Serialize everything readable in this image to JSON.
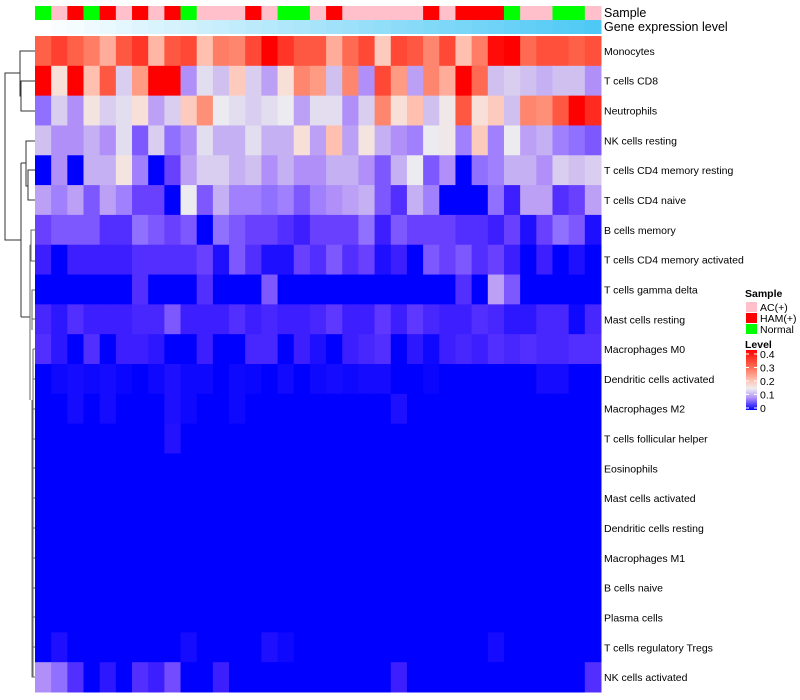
{
  "chart_data": {
    "type": "heatmap",
    "annotation_labels": {
      "sample": "Sample",
      "gene_expression": "Gene expression level"
    },
    "sample_colors": {
      "AC(+)": "#ffc0cb",
      "HAM(+)": "#ff0000",
      "Normal": "#00ff00"
    },
    "samples": [
      "Normal",
      "AC(+)",
      "HAM(+)",
      "Normal",
      "HAM(+)",
      "AC(+)",
      "HAM(+)",
      "AC(+)",
      "HAM(+)",
      "Normal",
      "AC(+)",
      "AC(+)",
      "AC(+)",
      "HAM(+)",
      "AC(+)",
      "Normal",
      "Normal",
      "AC(+)",
      "HAM(+)",
      "AC(+)",
      "AC(+)",
      "AC(+)",
      "AC(+)",
      "AC(+)",
      "HAM(+)",
      "AC(+)",
      "HAM(+)",
      "HAM(+)",
      "HAM(+)",
      "Normal",
      "AC(+)",
      "AC(+)",
      "Normal",
      "Normal",
      "AC(+)"
    ],
    "gene_expression": [
      0,
      0.03,
      0.06,
      0.09,
      0.12,
      0.15,
      0.18,
      0.21,
      0.24,
      0.26,
      0.29,
      0.32,
      0.35,
      0.38,
      0.41,
      0.44,
      0.47,
      0.5,
      0.53,
      0.56,
      0.59,
      0.62,
      0.65,
      0.68,
      0.71,
      0.74,
      0.76,
      0.79,
      0.82,
      0.85,
      0.88,
      0.91,
      0.94,
      0.97,
      1.0
    ],
    "gene_expression_colors": [
      "#ffffff",
      "#4ec9f5"
    ],
    "rows": [
      {
        "name": "Monocytes",
        "values": [
          0.3,
          0.34,
          0.3,
          0.27,
          0.22,
          0.31,
          0.35,
          0.21,
          0.31,
          0.33,
          0.2,
          0.27,
          0.26,
          0.33,
          0.4,
          0.35,
          0.31,
          0.31,
          0.22,
          0.29,
          0.33,
          0.19,
          0.33,
          0.31,
          0.26,
          0.33,
          0.2,
          0.27,
          0.39,
          0.4,
          0.29,
          0.32,
          0.32,
          0.3,
          0.32
        ]
      },
      {
        "name": "T cells CD8",
        "values": [
          0.4,
          0.17,
          0.4,
          0.2,
          0.31,
          0.12,
          0.24,
          0.4,
          0.4,
          0.08,
          0.13,
          0.11,
          0.19,
          0.12,
          0.09,
          0.17,
          0.26,
          0.24,
          0.11,
          0.26,
          0.08,
          0.33,
          0.24,
          0.09,
          0.26,
          0.22,
          0.4,
          0.29,
          0.11,
          0.12,
          0.11,
          0.1,
          0.11,
          0.11,
          0.08
        ]
      },
      {
        "name": "Neutrophils",
        "values": [
          0.06,
          0.12,
          0.08,
          0.16,
          0.12,
          0.13,
          0.17,
          0.09,
          0.12,
          0.19,
          0.25,
          0.14,
          0.13,
          0.12,
          0.13,
          0.14,
          0.09,
          0.13,
          0.13,
          0.08,
          0.12,
          0.26,
          0.17,
          0.2,
          0.11,
          0.15,
          0.31,
          0.17,
          0.19,
          0.11,
          0.26,
          0.25,
          0.31,
          0.4,
          0.36
        ]
      },
      {
        "name": "NK cells resting",
        "values": [
          0.11,
          0.08,
          0.08,
          0.1,
          0.08,
          0.13,
          0.05,
          0.12,
          0.06,
          0.08,
          0.13,
          0.1,
          0.1,
          0.13,
          0.1,
          0.1,
          0.17,
          0.09,
          0.2,
          0.09,
          0.16,
          0.1,
          0.08,
          0.07,
          0.14,
          0.15,
          0.07,
          0.19,
          0.07,
          0.14,
          0.09,
          0.1,
          0.07,
          0.06,
          0.05
        ]
      },
      {
        "name": "T cells CD4 memory resting",
        "values": [
          0,
          0.08,
          0,
          0.1,
          0.1,
          0.16,
          0.07,
          0,
          0.04,
          0.09,
          0.12,
          0.12,
          0.1,
          0.11,
          0.08,
          0.1,
          0.08,
          0.08,
          0.1,
          0.1,
          0.08,
          0.05,
          0.1,
          0.14,
          0.05,
          0.08,
          0,
          0.06,
          0.07,
          0.1,
          0.1,
          0.08,
          0.12,
          0.11,
          0.12
        ]
      },
      {
        "name": "T cells CD4 naive",
        "values": [
          0.09,
          0.07,
          0.09,
          0.05,
          0.09,
          0.07,
          0.04,
          0.04,
          0,
          0.14,
          0.05,
          0.1,
          0.07,
          0.07,
          0.06,
          0.07,
          0.05,
          0.07,
          0.08,
          0.09,
          0.1,
          0.05,
          0.03,
          0.1,
          0.07,
          0,
          0,
          0,
          0.06,
          0.02,
          0.09,
          0.09,
          0.03,
          0.04,
          0.09
        ]
      },
      {
        "name": "B cells memory",
        "values": [
          0.04,
          0.05,
          0.05,
          0.05,
          0.03,
          0.03,
          0.06,
          0.05,
          0.04,
          0.05,
          0,
          0.06,
          0.05,
          0.04,
          0.04,
          0.03,
          0.02,
          0.04,
          0.04,
          0.04,
          0.06,
          0.02,
          0.05,
          0.04,
          0.04,
          0.04,
          0.03,
          0.03,
          0.02,
          0.04,
          0.01,
          0.04,
          0.06,
          0.05,
          0.01
        ]
      },
      {
        "name": "T cells CD4 memory activated",
        "values": [
          0.02,
          0,
          0.02,
          0.02,
          0.02,
          0.02,
          0.03,
          0.03,
          0.03,
          0.03,
          0.04,
          0.01,
          0.05,
          0.03,
          0.01,
          0.01,
          0.04,
          0.03,
          0.05,
          0.03,
          0.04,
          0.01,
          0.02,
          0,
          0.05,
          0.04,
          0.05,
          0.03,
          0.04,
          0.02,
          0,
          0.02,
          0,
          0.01,
          0
        ]
      },
      {
        "name": "T cells gamma delta",
        "values": [
          0,
          0,
          0,
          0,
          0,
          0,
          0.03,
          0,
          0,
          0,
          0.03,
          0,
          0,
          0,
          0.05,
          0,
          0,
          0,
          0,
          0,
          0,
          0,
          0,
          0,
          0,
          0,
          0.03,
          0,
          0.09,
          0.05,
          0,
          0,
          0,
          0,
          0
        ]
      },
      {
        "name": "Mast cells resting",
        "values": [
          0.025,
          0.015,
          0.03,
          0.02,
          0.02,
          0.02,
          0.025,
          0.025,
          0.05,
          0.02,
          0.02,
          0.02,
          0.03,
          0.02,
          0.025,
          0.02,
          0.02,
          0.025,
          0.035,
          0.02,
          0.02,
          0.035,
          0.02,
          0.035,
          0.025,
          0.02,
          0.02,
          0.03,
          0.025,
          0.015,
          0.015,
          0.025,
          0.025,
          0.005,
          0.025
        ]
      },
      {
        "name": "Macrophages M0",
        "values": [
          0.03,
          0.015,
          0,
          0.03,
          0,
          0.02,
          0.02,
          0.015,
          0,
          0,
          0.02,
          0,
          0,
          0.025,
          0.025,
          0,
          0.02,
          0.01,
          0,
          0.02,
          0.025,
          0.03,
          0,
          0.015,
          0.005,
          0.02,
          0.025,
          0.02,
          0.03,
          0.025,
          0.03,
          0.025,
          0.025,
          0.03,
          0.03
        ]
      },
      {
        "name": "Dendritic cells activated",
        "values": [
          0,
          0.005,
          0.007,
          0.005,
          0.007,
          0.003,
          0,
          0.005,
          0.01,
          0.005,
          0.005,
          0,
          0.005,
          0.003,
          0,
          0.006,
          0,
          0.005,
          0.007,
          0.005,
          0.007,
          0.007,
          0,
          0,
          0.003,
          0,
          0,
          0,
          0,
          0,
          0,
          0.007,
          0.007,
          0,
          0
        ]
      },
      {
        "name": "Macrophages M2",
        "values": [
          0,
          0,
          0.007,
          0,
          0.007,
          0,
          0,
          0,
          0.01,
          0.005,
          0,
          0,
          0.005,
          0,
          0,
          0,
          0,
          0,
          0,
          0,
          0,
          0,
          0.01,
          0,
          0,
          0,
          0,
          0,
          0,
          0,
          0,
          0,
          0,
          0,
          0
        ]
      },
      {
        "name": "T cells follicular helper",
        "values": [
          0,
          0,
          0,
          0,
          0,
          0,
          0,
          0,
          0.012,
          0,
          0,
          0,
          0,
          0,
          0,
          0,
          0,
          0,
          0,
          0,
          0,
          0,
          0,
          0,
          0,
          0,
          0,
          0,
          0,
          0,
          0,
          0,
          0,
          0,
          0
        ]
      },
      {
        "name": "Eosinophils",
        "values": [
          0,
          0,
          0,
          0,
          0,
          0,
          0,
          0,
          0,
          0,
          0,
          0,
          0,
          0,
          0,
          0,
          0,
          0,
          0,
          0,
          0,
          0,
          0,
          0,
          0,
          0,
          0,
          0,
          0,
          0,
          0,
          0,
          0,
          0,
          0
        ]
      },
      {
        "name": "Mast cells activated",
        "values": [
          0,
          0,
          0,
          0,
          0,
          0,
          0,
          0,
          0,
          0,
          0,
          0,
          0,
          0,
          0,
          0,
          0,
          0,
          0,
          0,
          0,
          0,
          0,
          0,
          0,
          0,
          0,
          0,
          0,
          0,
          0,
          0,
          0,
          0,
          0
        ]
      },
      {
        "name": "Dendritic cells resting",
        "values": [
          0,
          0,
          0,
          0,
          0,
          0,
          0,
          0,
          0,
          0,
          0,
          0,
          0,
          0,
          0,
          0,
          0,
          0,
          0,
          0,
          0,
          0,
          0,
          0,
          0,
          0,
          0,
          0,
          0,
          0,
          0,
          0,
          0,
          0,
          0
        ]
      },
      {
        "name": "Macrophages M1",
        "values": [
          0,
          0,
          0,
          0,
          0,
          0,
          0,
          0,
          0,
          0,
          0,
          0,
          0,
          0,
          0,
          0,
          0,
          0,
          0,
          0,
          0,
          0,
          0,
          0,
          0,
          0,
          0,
          0,
          0,
          0,
          0,
          0,
          0,
          0,
          0
        ]
      },
      {
        "name": "B cells naive",
        "values": [
          0,
          0,
          0,
          0,
          0,
          0,
          0,
          0,
          0,
          0,
          0,
          0,
          0,
          0,
          0,
          0,
          0,
          0,
          0,
          0,
          0,
          0,
          0,
          0,
          0,
          0,
          0,
          0,
          0,
          0,
          0,
          0,
          0,
          0,
          0
        ]
      },
      {
        "name": "Plasma cells",
        "values": [
          0,
          0,
          0,
          0,
          0,
          0,
          0,
          0,
          0,
          0,
          0,
          0,
          0,
          0,
          0,
          0,
          0,
          0,
          0,
          0,
          0,
          0,
          0,
          0,
          0,
          0,
          0,
          0,
          0,
          0,
          0,
          0,
          0,
          0,
          0
        ]
      },
      {
        "name": "T cells regulatory  Tregs",
        "values": [
          0,
          0.01,
          0,
          0,
          0,
          0,
          0,
          0,
          0,
          0.007,
          0,
          0,
          0,
          0,
          0.01,
          0.005,
          0,
          0,
          0,
          0,
          0,
          0,
          0,
          0,
          0,
          0,
          0,
          0,
          0.007,
          0,
          0,
          0,
          0,
          0,
          0
        ]
      },
      {
        "name": "NK cells activated",
        "values": [
          0.08,
          0.06,
          0.03,
          0,
          0.015,
          0,
          0.03,
          0.02,
          0.045,
          0,
          0,
          0.02,
          0,
          0,
          0,
          0,
          0,
          0,
          0,
          0,
          0,
          0,
          0.02,
          0,
          0,
          0,
          0,
          0,
          0,
          0,
          0,
          0,
          0,
          0,
          0.03
        ]
      }
    ],
    "legend": {
      "sample_title": "Sample",
      "sample_entries": [
        "AC(+)",
        "HAM(+)",
        "Normal"
      ],
      "level_title": "Level",
      "level_ticks": [
        "0.4",
        "0.3",
        "0.2",
        "0.1",
        "0"
      ],
      "level_range": [
        0,
        0.4
      ]
    },
    "color_scale": {
      "low": "#0000ff",
      "mid": "#eeeeee",
      "high": "#ff0000"
    }
  }
}
